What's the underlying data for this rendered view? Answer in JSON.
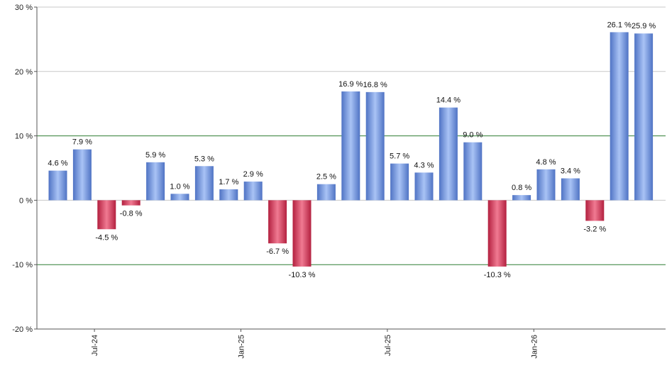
{
  "chart_data": {
    "type": "bar",
    "title": "",
    "xlabel": "",
    "ylabel": "",
    "ylim": [
      -20,
      30
    ],
    "yticks": [
      -20,
      -10,
      0,
      10,
      20,
      30
    ],
    "ytick_labels": [
      "-20 %",
      "-10 %",
      "0 %",
      "10 %",
      "20 %",
      "30 %"
    ],
    "reference_lines": [
      10,
      -10
    ],
    "x_tick_labels": [
      {
        "label": "Jul-24",
        "after_bar": 1
      },
      {
        "label": "Jan-25",
        "after_bar": 7
      },
      {
        "label": "Jul-25",
        "after_bar": 13
      },
      {
        "label": "Jan-26",
        "after_bar": 19
      }
    ],
    "values": [
      4.6,
      7.9,
      -4.5,
      -0.8,
      5.9,
      1.0,
      5.3,
      1.7,
      2.9,
      -6.7,
      -10.3,
      2.5,
      16.9,
      16.8,
      5.7,
      4.3,
      14.4,
      9.0,
      -10.3,
      0.8,
      4.8,
      3.4,
      -3.2,
      26.1,
      25.9
    ],
    "data_labels": [
      "4.6 %",
      "7.9 %",
      "-4.5 %",
      "-0.8 %",
      "5.9 %",
      "1.0 %",
      "5.3 %",
      "1.7 %",
      "2.9 %",
      "-6.7 %",
      "-10.3 %",
      "2.5 %",
      "16.9 %",
      "16.8 %",
      "5.7 %",
      "4.3 %",
      "14.4 %",
      "9.0 %",
      "-10.3 %",
      "0.8 %",
      "4.8 %",
      "3.4 %",
      "-3.2 %",
      "26.1 %",
      "25.9 %"
    ],
    "grid": true,
    "legend": "none",
    "colors": {
      "positive_light": "#a9c3f5",
      "positive_dark": "#4f73c4",
      "negative_light": "#f07a92",
      "negative_dark": "#b3203f",
      "gridline": "#c8c8c8",
      "reference_line": "#2e7d32",
      "axis": "#555555"
    }
  }
}
